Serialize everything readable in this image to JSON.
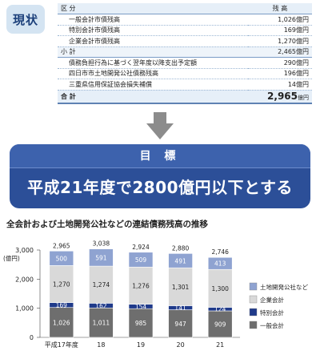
{
  "status_badge": "現状",
  "table": {
    "header": {
      "category": "区 分",
      "balance": "残 高"
    },
    "rows": [
      {
        "label": "一般会計市債残高",
        "value": "1,026億円",
        "indent": true
      },
      {
        "label": "特別会計市債残高",
        "value": "169億円",
        "indent": true
      },
      {
        "label": "企業会計市債残高",
        "value": "1,270億円",
        "indent": true
      },
      {
        "label": "小 計",
        "value": "2,465億円",
        "indent": false,
        "subtotal": true
      },
      {
        "label": "債務負担行為に基づく翌年度以降支出予定額",
        "value": "290億円",
        "indent": true
      },
      {
        "label": "四日市市土地開発公社債務残高",
        "value": "196億円",
        "indent": true
      },
      {
        "label": "三重県信用保証協会損失補償",
        "value": "14億円",
        "indent": true
      }
    ],
    "total": {
      "label": "合 計",
      "value": "2,965",
      "unit": "億円"
    }
  },
  "goal": {
    "heading": "目 標",
    "text": "平成21年度で2800億円以下とする"
  },
  "chart_data": {
    "type": "bar",
    "title": "全会計および土地開発公社などの連結債務残高の推移",
    "ylabel": "(億円)",
    "ylim": [
      0,
      3000
    ],
    "yticks": [
      "0",
      "1,000",
      "2,000",
      "3,000"
    ],
    "categories": [
      "平成17年度",
      "18",
      "19",
      "20",
      "21"
    ],
    "series": [
      {
        "name": "一般会計",
        "values": [
          1026,
          1011,
          985,
          947,
          909
        ],
        "color": "#6e6e6e",
        "label_color": "#ffffff"
      },
      {
        "name": "特別会計",
        "values": [
          169,
          162,
          154,
          141,
          124
        ],
        "color": "#1f3a8a",
        "label_color": "#ffffff"
      },
      {
        "name": "企業会計",
        "values": [
          1270,
          1274,
          1276,
          1301,
          1300
        ],
        "color": "#d9d9d9",
        "label_color": "#222222"
      },
      {
        "name": "土地開発公社など",
        "values": [
          500,
          591,
          509,
          491,
          413
        ],
        "color": "#8fa3d1",
        "label_color": "#ffffff"
      }
    ],
    "totals": [
      "2,965",
      "3,038",
      "2,924",
      "2,880",
      "2,746"
    ],
    "legend_position": "right"
  }
}
